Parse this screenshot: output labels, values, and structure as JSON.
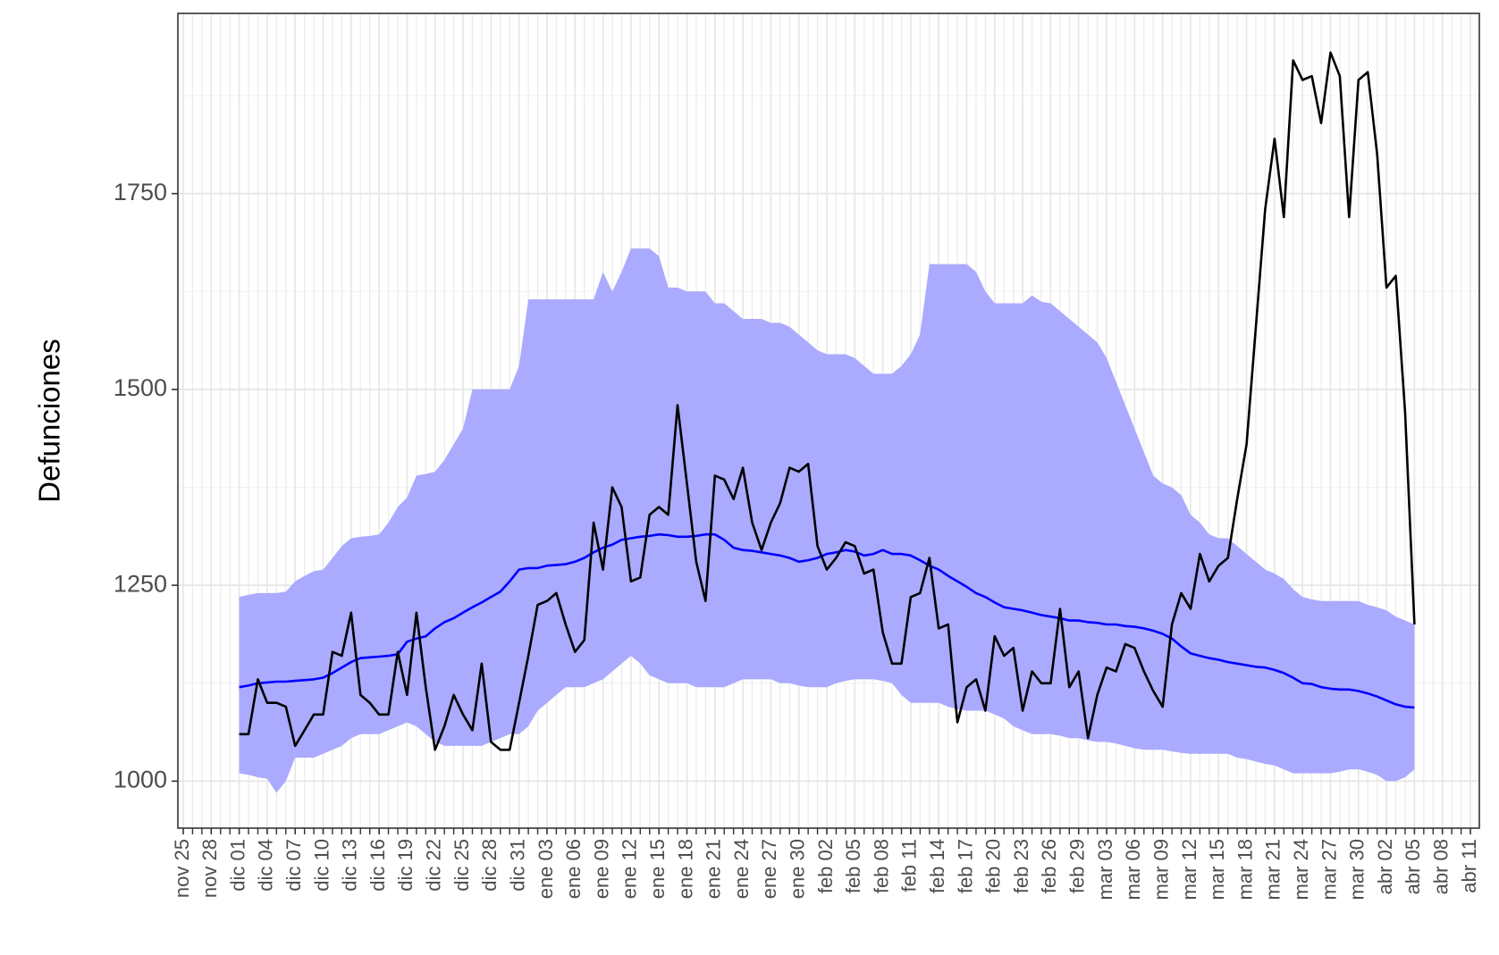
{
  "chart_data": {
    "type": "line",
    "ylabel": "Defunciones",
    "ylim": [
      940,
      1980
    ],
    "yticks": [
      1000,
      1250,
      1500,
      1750
    ],
    "grid": true,
    "categories": [
      "nov 25",
      null,
      null,
      "nov 28",
      null,
      null,
      "dic 01",
      null,
      null,
      "dic 04",
      null,
      null,
      "dic 07",
      null,
      null,
      "dic 10",
      null,
      null,
      "dic 13",
      null,
      null,
      "dic 16",
      null,
      null,
      "dic 19",
      null,
      null,
      "dic 22",
      null,
      null,
      "dic 25",
      null,
      null,
      "dic 28",
      null,
      null,
      "dic 31",
      null,
      null,
      "ene 03",
      null,
      null,
      "ene 06",
      null,
      null,
      "ene 09",
      null,
      null,
      "ene 12",
      null,
      null,
      "ene 15",
      null,
      null,
      "ene 18",
      null,
      null,
      "ene 21",
      null,
      null,
      "ene 24",
      null,
      null,
      "ene 27",
      null,
      null,
      "ene 30",
      null,
      null,
      "feb 02",
      null,
      null,
      "feb 05",
      null,
      null,
      "feb 08",
      null,
      null,
      "feb 11",
      null,
      null,
      "feb 14",
      null,
      null,
      "feb 17",
      null,
      null,
      "feb 20",
      null,
      null,
      "feb 23",
      null,
      null,
      "feb 26",
      null,
      null,
      "feb 29",
      null,
      null,
      "mar 03",
      null,
      null,
      "mar 06",
      null,
      null,
      "mar 09",
      null,
      null,
      "mar 12",
      null,
      null,
      "mar 15",
      null,
      null,
      "mar 18",
      null,
      null,
      "mar 21",
      null,
      null,
      "mar 24",
      null,
      null,
      "mar 27",
      null,
      null,
      "mar 30",
      null,
      null,
      "abr 02",
      null,
      null,
      "abr 05",
      null,
      null,
      "abr 08",
      null,
      null,
      "abr 11"
    ],
    "band": {
      "color": "#aaaaff",
      "upper": [
        null,
        null,
        null,
        null,
        null,
        null,
        1235,
        1238,
        1240,
        1240,
        1240,
        1242,
        1255,
        1262,
        1268,
        1270,
        1285,
        1300,
        1310,
        1312,
        1313,
        1315,
        1330,
        1350,
        1362,
        1390,
        1392,
        1395,
        1410,
        1430,
        1450,
        1500,
        1500,
        1500,
        1500,
        1500,
        1530,
        1615,
        1615,
        1615,
        1615,
        1615,
        1615,
        1615,
        1615,
        1650,
        1625,
        1650,
        1680,
        1680,
        1680,
        1670,
        1630,
        1630,
        1625,
        1625,
        1625,
        1610,
        1610,
        1600,
        1590,
        1590,
        1590,
        1585,
        1585,
        1580,
        1570,
        1560,
        1550,
        1545,
        1545,
        1545,
        1540,
        1530,
        1520,
        1520,
        1520,
        1530,
        1545,
        1570,
        1660,
        1660,
        1660,
        1660,
        1660,
        1650,
        1625,
        1610,
        1610,
        1610,
        1610,
        1620,
        1612,
        1610,
        1600,
        1590,
        1580,
        1570,
        1560,
        1540,
        1510,
        1480,
        1450,
        1420,
        1390,
        1380,
        1375,
        1365,
        1340,
        1330,
        1315,
        1310,
        1310,
        1300,
        1290,
        1280,
        1270,
        1265,
        1258,
        1245,
        1235,
        1232,
        1230,
        1230,
        1230,
        1230,
        1230,
        1225,
        1222,
        1218,
        1210,
        1205,
        1200,
        null,
        null,
        null,
        null,
        null,
        null
      ],
      "lower": [
        null,
        null,
        null,
        null,
        null,
        null,
        1010,
        1008,
        1005,
        1003,
        985,
        1000,
        1030,
        1030,
        1030,
        1035,
        1040,
        1045,
        1055,
        1060,
        1060,
        1060,
        1065,
        1070,
        1075,
        1070,
        1060,
        1050,
        1045,
        1045,
        1045,
        1045,
        1045,
        1050,
        1055,
        1060,
        1060,
        1070,
        1090,
        1100,
        1110,
        1120,
        1120,
        1120,
        1125,
        1130,
        1140,
        1150,
        1160,
        1150,
        1135,
        1130,
        1125,
        1125,
        1125,
        1120,
        1120,
        1120,
        1120,
        1125,
        1130,
        1130,
        1130,
        1130,
        1125,
        1125,
        1122,
        1120,
        1120,
        1120,
        1125,
        1128,
        1130,
        1130,
        1130,
        1128,
        1125,
        1110,
        1100,
        1100,
        1100,
        1100,
        1095,
        1092,
        1090,
        1090,
        1090,
        1085,
        1080,
        1070,
        1065,
        1060,
        1060,
        1060,
        1058,
        1055,
        1055,
        1052,
        1050,
        1050,
        1048,
        1045,
        1042,
        1040,
        1040,
        1040,
        1038,
        1036,
        1035,
        1035,
        1035,
        1035,
        1035,
        1030,
        1028,
        1025,
        1022,
        1020,
        1015,
        1010,
        1010,
        1010,
        1010,
        1010,
        1012,
        1015,
        1015,
        1012,
        1008,
        1000,
        1000,
        1005,
        1015,
        null,
        null,
        null,
        null,
        null,
        null
      ]
    },
    "series": [
      {
        "color": "#0000ff",
        "values": [
          null,
          null,
          null,
          null,
          null,
          null,
          1120,
          1122,
          1125,
          1126,
          1127,
          1127,
          1128,
          1129,
          1130,
          1132,
          1138,
          1145,
          1152,
          1157,
          1158,
          1159,
          1160,
          1162,
          1178,
          1182,
          1185,
          1195,
          1203,
          1208,
          1215,
          1222,
          1228,
          1235,
          1242,
          1255,
          1270,
          1272,
          1272,
          1275,
          1276,
          1277,
          1280,
          1285,
          1292,
          1298,
          1302,
          1308,
          1310,
          1312,
          1313,
          1315,
          1314,
          1312,
          1312,
          1313,
          1315,
          1315,
          1308,
          1298,
          1295,
          1294,
          1292,
          1290,
          1288,
          1285,
          1280,
          1282,
          1285,
          1290,
          1292,
          1295,
          1293,
          1288,
          1290,
          1295,
          1290,
          1290,
          1288,
          1282,
          1275,
          1270,
          1262,
          1255,
          1248,
          1240,
          1235,
          1228,
          1222,
          1220,
          1218,
          1215,
          1212,
          1210,
          1208,
          1205,
          1205,
          1203,
          1202,
          1200,
          1200,
          1198,
          1197,
          1195,
          1192,
          1188,
          1182,
          1172,
          1163,
          1160,
          1157,
          1155,
          1152,
          1150,
          1148,
          1146,
          1145,
          1142,
          1138,
          1132,
          1125,
          1124,
          1120,
          1118,
          1117,
          1117,
          1115,
          1112,
          1108,
          1103,
          1098,
          1095,
          1094,
          null,
          null,
          null,
          null,
          null,
          null
        ]
      },
      {
        "color": "#000000",
        "values": [
          null,
          null,
          null,
          null,
          null,
          null,
          1060,
          1060,
          1130,
          1100,
          1100,
          1095,
          1045,
          1065,
          1085,
          1085,
          1165,
          1160,
          1215,
          1110,
          1100,
          1085,
          1085,
          1165,
          1110,
          1215,
          1120,
          1040,
          1070,
          1110,
          1085,
          1065,
          1150,
          1050,
          1040,
          1040,
          1100,
          1160,
          1225,
          1230,
          1240,
          1200,
          1165,
          1180,
          1330,
          1270,
          1375,
          1350,
          1255,
          1260,
          1340,
          1350,
          1340,
          1480,
          1380,
          1280,
          1230,
          1390,
          1385,
          1360,
          1400,
          1330,
          1295,
          1330,
          1355,
          1400,
          1395,
          1405,
          1300,
          1270,
          1285,
          1305,
          1300,
          1265,
          1270,
          1190,
          1150,
          1150,
          1235,
          1240,
          1285,
          1195,
          1200,
          1075,
          1120,
          1130,
          1090,
          1185,
          1160,
          1170,
          1090,
          1140,
          1125,
          1125,
          1220,
          1120,
          1140,
          1055,
          1110,
          1145,
          1140,
          1175,
          1170,
          1140,
          1115,
          1095,
          1200,
          1240,
          1220,
          1290,
          1255,
          1275,
          1285,
          1360,
          1430,
          1580,
          1730,
          1820,
          1720,
          1920,
          1895,
          1900,
          1840,
          1930,
          1900,
          1720,
          1895,
          1905,
          1800,
          1630,
          1645,
          1470,
          1200,
          null,
          null,
          null,
          null,
          null,
          null
        ]
      }
    ]
  }
}
